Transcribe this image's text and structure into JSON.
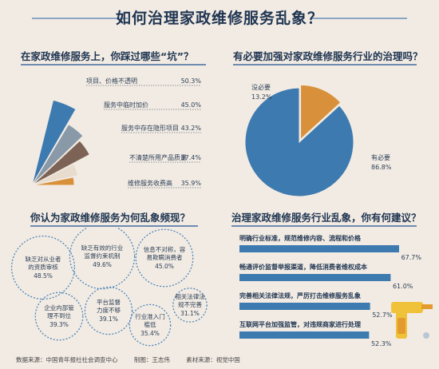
{
  "title": "如何治理家政维修服务乱象？",
  "chart_data": [
    {
      "type": "bar",
      "title": "在家政维修服务上，你踩过哪些“坑”？",
      "categories": [
        "项目、价格不透明",
        "服务中临时加价",
        "服务中存在隐形项目",
        "不清楚所用产品质量",
        "维修服务收费高"
      ],
      "values": [
        50.3,
        45.0,
        43.2,
        37.4,
        35.9
      ],
      "value_labels": [
        "50.3%",
        "45.0%",
        "43.2%",
        "37.4%",
        "35.9%"
      ],
      "colors": [
        "#3d7ab0",
        "#8a99a8",
        "#7d6356",
        "#e7dccd",
        "#d8913a"
      ]
    },
    {
      "type": "pie",
      "title": "有必要加强对家政维修服务行业的治理吗？",
      "labels": [
        "有必要",
        "没必要"
      ],
      "values": [
        86.8,
        13.2
      ],
      "value_labels": [
        "86.8%",
        "13.2%"
      ],
      "colors": [
        "#3d7ab0",
        "#d8913a"
      ]
    },
    {
      "type": "bubble",
      "title": "你认为家政维修服务为何乱象频现？",
      "labels": [
        "缺乏对从业者的资质审核",
        "缺乏有效的行业监督约束机制",
        "信息不对称，容易欺瞒消费者",
        "企业内部管理不到位",
        "平台监督力度不够",
        "行业准入门槛低",
        "相关法律法规不完善"
      ],
      "values": [
        48.5,
        49.6,
        45.0,
        39.3,
        39.1,
        35.4,
        31.1
      ],
      "value_labels": [
        "48.5%",
        "49.6%",
        "45.0%",
        "39.3%",
        "39.1%",
        "35.4%",
        "31.1%"
      ]
    },
    {
      "type": "bar",
      "title": "治理家政维修服务行业乱象，你有何建议？",
      "categories": [
        "明确行业标准，规范维修内容、流程和价格",
        "畅通评价监督举报渠道，降低消费者维权成本",
        "完善相关法律法规，严厉打击维修服务乱象",
        "互联网平台加强监管，对违规商家进行处理"
      ],
      "values": [
        67.7,
        61.0,
        52.7,
        52.3
      ],
      "value_labels": [
        "67.7%",
        "61.0%",
        "52.7%",
        "52.3%"
      ],
      "colors": [
        "#3d7ab0"
      ]
    }
  ],
  "footer": {
    "source": "数据来源：中国青年报社社会调查中心",
    "design": "制图：王志伟",
    "material": "素材来源：视觉中国"
  }
}
